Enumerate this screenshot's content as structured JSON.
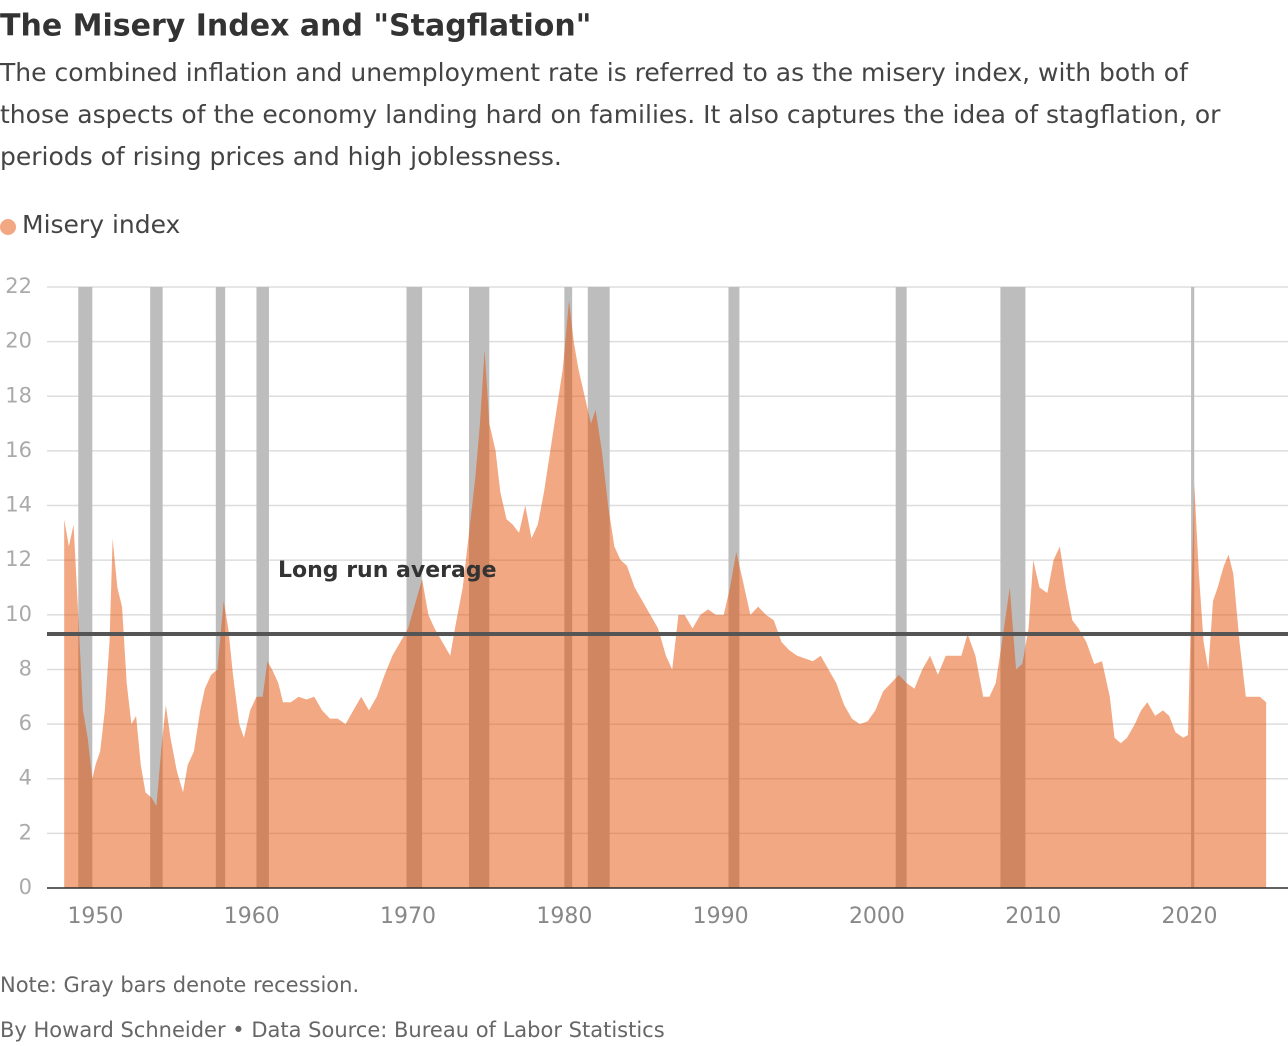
{
  "chart_data": {
    "type": "area",
    "title": "The Misery Index and \"Stagflation\"",
    "subtitle": [
      "The combined inflation and unemployment rate is referred to as the misery index, with both of",
      "those aspects of the economy landing hard on families. It also captures the idea of stagflation, or",
      "periods of rising prices and high joblessness."
    ],
    "note": "Note: Gray bars denote recession.",
    "credit": "By Howard Schneider • Data Source: Bureau of Labor Statistics",
    "series": [
      {
        "name": "Misery index",
        "color": "#e44e02",
        "x": [
          1948.0,
          1948.3,
          1948.6,
          1948.9,
          1949.2,
          1949.5,
          1949.8,
          1950.0,
          1950.3,
          1950.6,
          1950.9,
          1951.1,
          1951.4,
          1951.7,
          1952.0,
          1952.3,
          1952.6,
          1952.9,
          1953.2,
          1953.6,
          1953.9,
          1954.2,
          1954.5,
          1954.8,
          1955.2,
          1955.6,
          1955.9,
          1956.3,
          1956.7,
          1957.0,
          1957.4,
          1957.8,
          1958.2,
          1958.5,
          1958.8,
          1959.2,
          1959.5,
          1959.9,
          1960.3,
          1960.7,
          1961.0,
          1961.3,
          1961.7,
          1962.0,
          1962.5,
          1963.0,
          1963.5,
          1964.0,
          1964.5,
          1965.0,
          1965.5,
          1966.0,
          1966.5,
          1967.0,
          1967.5,
          1968.0,
          1968.5,
          1969.0,
          1969.5,
          1970.0,
          1970.5,
          1970.9,
          1971.3,
          1971.7,
          1972.2,
          1972.7,
          1973.0,
          1973.5,
          1973.9,
          1974.3,
          1974.6,
          1974.9,
          1975.2,
          1975.6,
          1975.9,
          1976.3,
          1976.7,
          1977.1,
          1977.5,
          1977.9,
          1978.3,
          1978.7,
          1979.1,
          1979.5,
          1979.9,
          1980.3,
          1980.6,
          1980.9,
          1981.3,
          1981.7,
          1982.0,
          1982.4,
          1982.8,
          1983.2,
          1983.6,
          1984.0,
          1984.5,
          1985.0,
          1985.5,
          1986.0,
          1986.5,
          1986.9,
          1987.3,
          1987.7,
          1988.2,
          1988.7,
          1989.2,
          1989.7,
          1990.2,
          1990.6,
          1991.0,
          1991.4,
          1991.9,
          1992.4,
          1992.9,
          1993.4,
          1993.9,
          1994.4,
          1994.9,
          1995.4,
          1995.9,
          1996.4,
          1996.9,
          1997.4,
          1997.9,
          1998.4,
          1998.9,
          1999.4,
          1999.9,
          2000.4,
          2000.9,
          2001.4,
          2001.9,
          2002.4,
          2002.9,
          2003.4,
          2003.9,
          2004.4,
          2004.9,
          2005.4,
          2005.8,
          2006.3,
          2006.8,
          2007.2,
          2007.6,
          2008.0,
          2008.5,
          2008.9,
          2009.3,
          2009.7,
          2010.0,
          2010.4,
          2010.9,
          2011.3,
          2011.7,
          2012.1,
          2012.5,
          2012.9,
          2013.4,
          2013.9,
          2014.4,
          2014.9,
          2015.2,
          2015.6,
          2016.0,
          2016.5,
          2016.9,
          2017.3,
          2017.8,
          2018.3,
          2018.7,
          2019.1,
          2019.6,
          2019.9,
          2020.3,
          2020.6,
          2020.9,
          2021.2,
          2021.5,
          2021.8,
          2022.2,
          2022.5,
          2022.8,
          2023.2,
          2023.6,
          2024.0,
          2024.5,
          2024.9
        ],
        "values": [
          13.5,
          12.5,
          13.3,
          10,
          6.5,
          5.5,
          4.0,
          4.5,
          5.0,
          6.5,
          9,
          12.8,
          11,
          10.3,
          7.5,
          6,
          6.3,
          4.5,
          3.5,
          3.3,
          3.0,
          5.0,
          6.7,
          5.5,
          4.3,
          3.5,
          4.5,
          5.0,
          6.5,
          7.3,
          7.8,
          8.0,
          10.5,
          9.5,
          7.8,
          6.0,
          5.5,
          6.5,
          7.0,
          7.0,
          8.3,
          8.0,
          7.5,
          6.8,
          6.8,
          7.0,
          6.9,
          7.0,
          6.5,
          6.2,
          6.2,
          6.0,
          6.5,
          7.0,
          6.5,
          7.0,
          7.8,
          8.5,
          9.0,
          9.5,
          10.5,
          11.3,
          10.0,
          9.5,
          9.0,
          8.5,
          9.5,
          11,
          13.0,
          15.0,
          17.0,
          19.7,
          17.0,
          16.0,
          14.5,
          13.5,
          13.3,
          13.0,
          14.0,
          12.8,
          13.3,
          14.5,
          16.0,
          17.5,
          19.0,
          21.5,
          20.0,
          19.0,
          18.0,
          17.0,
          17.5,
          16.0,
          14.0,
          12.5,
          12.0,
          11.8,
          11.0,
          10.5,
          10.0,
          9.5,
          8.5,
          8.0,
          10.0,
          10.0,
          9.5,
          10.0,
          10.2,
          10.0,
          10.0,
          11.0,
          12.3,
          11.3,
          10.0,
          10.3,
          10.0,
          9.8,
          9.0,
          8.7,
          8.5,
          8.4,
          8.3,
          8.5,
          8.0,
          7.5,
          6.7,
          6.2,
          6.0,
          6.1,
          6.5,
          7.2,
          7.5,
          7.8,
          7.5,
          7.3,
          8.0,
          8.5,
          7.8,
          8.5,
          8.5,
          8.5,
          9.3,
          8.5,
          7.0,
          7.0,
          7.5,
          9.0,
          11.0,
          8.0,
          8.2,
          9.5,
          12.0,
          11.0,
          10.8,
          12.0,
          12.5,
          11.0,
          9.8,
          9.5,
          9.0,
          8.2,
          8.3,
          7.0,
          5.5,
          5.3,
          5.5,
          6.0,
          6.5,
          6.8,
          6.3,
          6.5,
          6.3,
          5.7,
          5.5,
          5.6,
          14.8,
          11.5,
          9.0,
          8.0,
          10.5,
          11.0,
          11.8,
          12.2,
          11.5,
          9.0,
          7.0,
          7.0,
          7.0,
          6.8
        ]
      }
    ],
    "recessions": [
      [
        1948.9,
        1949.8
      ],
      [
        1953.5,
        1954.3
      ],
      [
        1957.7,
        1958.3
      ],
      [
        1960.3,
        1961.1
      ],
      [
        1969.9,
        1970.9
      ],
      [
        1973.9,
        1975.2
      ],
      [
        1980.0,
        1980.5
      ],
      [
        1981.5,
        1982.9
      ],
      [
        1990.5,
        1991.2
      ],
      [
        2001.2,
        2001.9
      ],
      [
        2007.9,
        2009.5
      ],
      [
        2020.1,
        2020.3
      ]
    ],
    "recession_color": "#bdbdbd",
    "average": {
      "label": "Long run average",
      "value": 9.3,
      "color": "#555555"
    },
    "xlim": [
      1946.9,
      2026.3
    ],
    "xticks": [
      1950,
      1960,
      1970,
      1980,
      1990,
      2000,
      2010,
      2020
    ],
    "ylim": [
      0,
      22
    ],
    "yticks": [
      0,
      2,
      4,
      6,
      8,
      10,
      12,
      14,
      16,
      18,
      20,
      22
    ],
    "grid": true
  }
}
